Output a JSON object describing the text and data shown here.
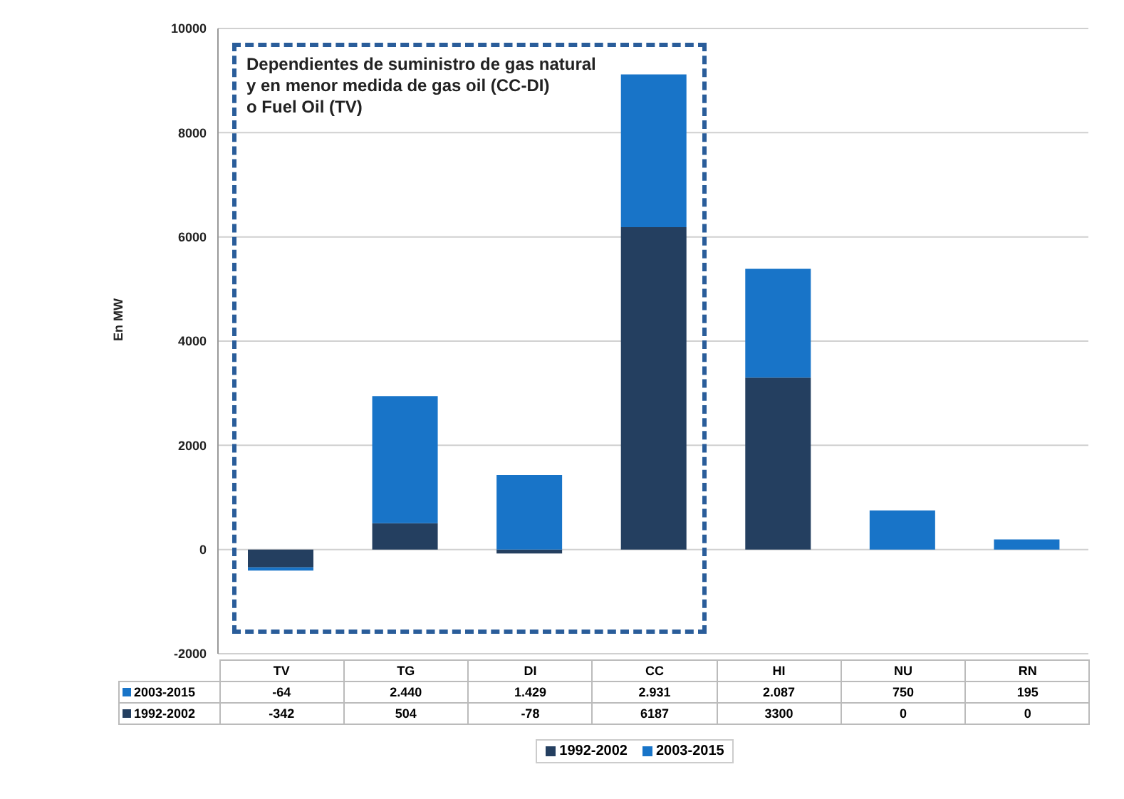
{
  "chart_data": {
    "type": "bar",
    "stacked": true,
    "ylabel": "En MW",
    "categories": [
      "TV",
      "TG",
      "DI",
      "CC",
      "HI",
      "NU",
      "RN"
    ],
    "series": [
      {
        "name": "1992-2002",
        "color": "#243f60",
        "values": [
          -342,
          504,
          -78,
          6187,
          3300,
          0,
          0
        ],
        "value_labels": [
          "-342",
          "504",
          "-78",
          "6187",
          "3300",
          "0",
          "0"
        ]
      },
      {
        "name": "2003-2015",
        "color": "#1874c8",
        "values": [
          -64,
          2440,
          1429,
          2931,
          2087,
          750,
          195
        ],
        "value_labels": [
          "-64",
          "2.440",
          "1.429",
          "2.931",
          "2.087",
          "750",
          "195"
        ]
      }
    ],
    "ylim": [
      -2000,
      10000
    ],
    "yticks": [
      -2000,
      0,
      2000,
      4000,
      6000,
      8000,
      10000
    ],
    "grid": "y",
    "legend": "bottom",
    "annotations": [
      "Dependientes de suministro de gas natural\ny en menor medida de gas oil (CC-DI)\no Fuel Oil (TV)"
    ]
  }
}
